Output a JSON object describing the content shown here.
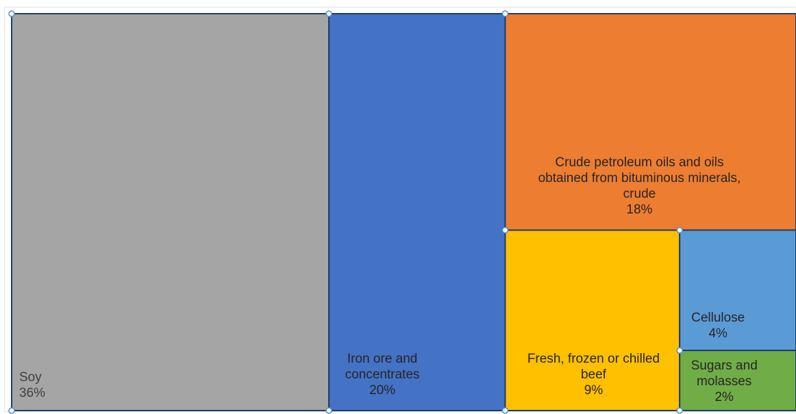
{
  "chart_data": {
    "type": "treemap",
    "unit": "%",
    "items": [
      {
        "label_lines": [
          "Soy"
        ],
        "value": 36,
        "value_text": "36%",
        "color": "#a5a5a5",
        "text_color": "#404040"
      },
      {
        "label_lines": [
          "Iron ore and",
          "concentrates"
        ],
        "value": 20,
        "value_text": "20%",
        "color": "#4472c4",
        "text_color": "#262626"
      },
      {
        "label_lines": [
          "Crude petroleum oils and oils",
          "obtained from bituminous minerals,",
          "crude"
        ],
        "value": 18,
        "value_text": "18%",
        "color": "#ed7d31",
        "text_color": "#262626"
      },
      {
        "label_lines": [
          "Fresh, frozen or chilled",
          "beef"
        ],
        "value": 9,
        "value_text": "9%",
        "color": "#ffc000",
        "text_color": "#262626"
      },
      {
        "label_lines": [
          "Cellulose"
        ],
        "value": 4,
        "value_text": "4%",
        "color": "#5b9bd5",
        "text_color": "#262626"
      },
      {
        "label_lines": [
          "Sugars and",
          "molasses"
        ],
        "value": 2,
        "value_text": "2%",
        "color": "#70ad47",
        "text_color": "#262626"
      }
    ],
    "tile_border_color": "#1f3d6b",
    "selection_handle_color": "#4a90d9"
  }
}
